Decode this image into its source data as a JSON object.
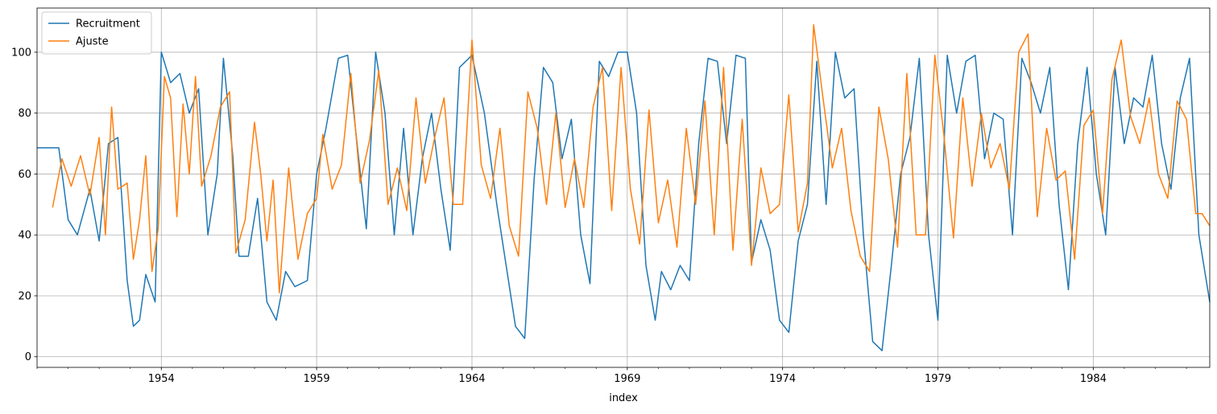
{
  "chart_data": {
    "type": "line",
    "title": "",
    "xlabel": "index",
    "ylabel": "",
    "x_ticks": [
      "1954",
      "1959",
      "1964",
      "1969",
      "1974",
      "1979",
      "1984"
    ],
    "y_ticks": [
      "0",
      "20",
      "40",
      "60",
      "80",
      "100"
    ],
    "xlim": [
      1950.0,
      1987.75
    ],
    "ylim": [
      -3.5,
      114.5
    ],
    "grid": true,
    "legend_position": "upper-left",
    "series": [
      {
        "name": "Recruitment",
        "color": "#1f77b4",
        "points": [
          [
            1950.0,
            68.6
          ],
          [
            1950.7,
            68.6
          ],
          [
            1951.0,
            45
          ],
          [
            1951.3,
            40
          ],
          [
            1951.7,
            55
          ],
          [
            1952.0,
            38
          ],
          [
            1952.3,
            70
          ],
          [
            1952.6,
            72
          ],
          [
            1952.9,
            25
          ],
          [
            1953.1,
            10
          ],
          [
            1953.3,
            12
          ],
          [
            1953.5,
            27
          ],
          [
            1953.8,
            18
          ],
          [
            1954.0,
            100
          ],
          [
            1954.3,
            90
          ],
          [
            1954.6,
            93
          ],
          [
            1954.9,
            80
          ],
          [
            1955.2,
            88
          ],
          [
            1955.5,
            40
          ],
          [
            1955.8,
            60
          ],
          [
            1956.0,
            98
          ],
          [
            1956.3,
            66
          ],
          [
            1956.5,
            33
          ],
          [
            1956.8,
            33
          ],
          [
            1957.1,
            52
          ],
          [
            1957.4,
            18
          ],
          [
            1957.7,
            12
          ],
          [
            1958.0,
            28
          ],
          [
            1958.3,
            23
          ],
          [
            1958.7,
            25
          ],
          [
            1959.0,
            60
          ],
          [
            1959.3,
            75
          ],
          [
            1959.7,
            98
          ],
          [
            1960.0,
            99
          ],
          [
            1960.3,
            70
          ],
          [
            1960.6,
            42
          ],
          [
            1960.9,
            100
          ],
          [
            1961.2,
            80
          ],
          [
            1961.5,
            40
          ],
          [
            1961.8,
            75
          ],
          [
            1962.1,
            40
          ],
          [
            1962.4,
            65
          ],
          [
            1962.7,
            80
          ],
          [
            1963.0,
            55
          ],
          [
            1963.3,
            35
          ],
          [
            1963.6,
            95
          ],
          [
            1964.0,
            99
          ],
          [
            1964.4,
            80
          ],
          [
            1964.8,
            50
          ],
          [
            1965.1,
            30
          ],
          [
            1965.4,
            10
          ],
          [
            1965.7,
            6
          ],
          [
            1966.0,
            58
          ],
          [
            1966.3,
            95
          ],
          [
            1966.6,
            90
          ],
          [
            1966.9,
            65
          ],
          [
            1967.2,
            78
          ],
          [
            1967.5,
            40
          ],
          [
            1967.8,
            24
          ],
          [
            1968.1,
            97
          ],
          [
            1968.4,
            92
          ],
          [
            1968.7,
            100
          ],
          [
            1969.0,
            100
          ],
          [
            1969.3,
            80
          ],
          [
            1969.6,
            30
          ],
          [
            1969.9,
            12
          ],
          [
            1970.1,
            28
          ],
          [
            1970.4,
            22
          ],
          [
            1970.7,
            30
          ],
          [
            1971.0,
            25
          ],
          [
            1971.3,
            70
          ],
          [
            1971.6,
            98
          ],
          [
            1971.9,
            97
          ],
          [
            1972.2,
            70
          ],
          [
            1972.5,
            99
          ],
          [
            1972.8,
            98
          ],
          [
            1973.0,
            31
          ],
          [
            1973.3,
            45
          ],
          [
            1973.6,
            35
          ],
          [
            1973.9,
            12
          ],
          [
            1974.2,
            8
          ],
          [
            1974.5,
            38
          ],
          [
            1974.8,
            50
          ],
          [
            1975.1,
            97
          ],
          [
            1975.4,
            50
          ],
          [
            1975.7,
            100
          ],
          [
            1976.0,
            85
          ],
          [
            1976.3,
            88
          ],
          [
            1976.6,
            40
          ],
          [
            1976.9,
            5
          ],
          [
            1977.2,
            2
          ],
          [
            1977.5,
            30
          ],
          [
            1977.8,
            60
          ],
          [
            1978.1,
            72
          ],
          [
            1978.4,
            98
          ],
          [
            1978.7,
            40
          ],
          [
            1979.0,
            12
          ],
          [
            1979.3,
            99
          ],
          [
            1979.6,
            80
          ],
          [
            1979.9,
            97
          ],
          [
            1980.2,
            99
          ],
          [
            1980.5,
            65
          ],
          [
            1980.8,
            80
          ],
          [
            1981.1,
            78
          ],
          [
            1981.4,
            40
          ],
          [
            1981.7,
            98
          ],
          [
            1982.0,
            90
          ],
          [
            1982.3,
            80
          ],
          [
            1982.6,
            95
          ],
          [
            1982.9,
            50
          ],
          [
            1983.2,
            22
          ],
          [
            1983.5,
            70
          ],
          [
            1983.8,
            95
          ],
          [
            1984.1,
            60
          ],
          [
            1984.4,
            40
          ],
          [
            1984.7,
            95
          ],
          [
            1985.0,
            70
          ],
          [
            1985.3,
            85
          ],
          [
            1985.6,
            82
          ],
          [
            1985.9,
            99
          ],
          [
            1986.2,
            70
          ],
          [
            1986.5,
            55
          ],
          [
            1986.8,
            85
          ],
          [
            1987.1,
            98
          ],
          [
            1987.4,
            40
          ],
          [
            1987.75,
            18
          ]
        ]
      },
      {
        "name": "Ajuste",
        "color": "#ff7f0e",
        "points": [
          [
            1950.5,
            49
          ],
          [
            1950.8,
            65
          ],
          [
            1951.1,
            56
          ],
          [
            1951.4,
            66
          ],
          [
            1951.7,
            53
          ],
          [
            1952.0,
            72
          ],
          [
            1952.2,
            40
          ],
          [
            1952.4,
            82
          ],
          [
            1952.6,
            55
          ],
          [
            1952.9,
            57
          ],
          [
            1953.1,
            32
          ],
          [
            1953.3,
            45
          ],
          [
            1953.5,
            66
          ],
          [
            1953.7,
            28
          ],
          [
            1953.9,
            42
          ],
          [
            1954.1,
            92
          ],
          [
            1954.3,
            85
          ],
          [
            1954.5,
            46
          ],
          [
            1954.7,
            83
          ],
          [
            1954.9,
            60
          ],
          [
            1955.1,
            92
          ],
          [
            1955.3,
            56
          ],
          [
            1955.6,
            66
          ],
          [
            1955.9,
            82
          ],
          [
            1956.2,
            87
          ],
          [
            1956.4,
            34
          ],
          [
            1956.7,
            45
          ],
          [
            1957.0,
            77
          ],
          [
            1957.2,
            60
          ],
          [
            1957.4,
            38
          ],
          [
            1957.6,
            58
          ],
          [
            1957.8,
            21
          ],
          [
            1958.1,
            62
          ],
          [
            1958.4,
            32
          ],
          [
            1958.7,
            47
          ],
          [
            1959.0,
            52
          ],
          [
            1959.2,
            73
          ],
          [
            1959.5,
            55
          ],
          [
            1959.8,
            63
          ],
          [
            1960.1,
            93
          ],
          [
            1960.4,
            57
          ],
          [
            1960.7,
            71
          ],
          [
            1961.0,
            94
          ],
          [
            1961.3,
            50
          ],
          [
            1961.6,
            62
          ],
          [
            1961.9,
            48
          ],
          [
            1962.2,
            85
          ],
          [
            1962.5,
            57
          ],
          [
            1962.8,
            72
          ],
          [
            1963.1,
            85
          ],
          [
            1963.4,
            50
          ],
          [
            1963.7,
            50
          ],
          [
            1964.0,
            104
          ],
          [
            1964.3,
            63
          ],
          [
            1964.6,
            52
          ],
          [
            1964.9,
            75
          ],
          [
            1965.2,
            43
          ],
          [
            1965.5,
            33
          ],
          [
            1965.8,
            87
          ],
          [
            1966.1,
            75
          ],
          [
            1966.4,
            50
          ],
          [
            1966.7,
            80
          ],
          [
            1967.0,
            49
          ],
          [
            1967.3,
            65
          ],
          [
            1967.6,
            49
          ],
          [
            1967.9,
            82
          ],
          [
            1968.2,
            95
          ],
          [
            1968.5,
            48
          ],
          [
            1968.8,
            95
          ],
          [
            1969.1,
            55
          ],
          [
            1969.4,
            37
          ],
          [
            1969.7,
            81
          ],
          [
            1970.0,
            44
          ],
          [
            1970.3,
            58
          ],
          [
            1970.6,
            36
          ],
          [
            1970.9,
            75
          ],
          [
            1971.2,
            50
          ],
          [
            1971.5,
            84
          ],
          [
            1971.8,
            40
          ],
          [
            1972.1,
            95
          ],
          [
            1972.4,
            35
          ],
          [
            1972.7,
            78
          ],
          [
            1973.0,
            30
          ],
          [
            1973.3,
            62
          ],
          [
            1973.6,
            47
          ],
          [
            1973.9,
            50
          ],
          [
            1974.2,
            86
          ],
          [
            1974.5,
            41
          ],
          [
            1974.8,
            57
          ],
          [
            1975.0,
            109
          ],
          [
            1975.3,
            85
          ],
          [
            1975.6,
            62
          ],
          [
            1975.9,
            75
          ],
          [
            1976.2,
            48
          ],
          [
            1976.5,
            33
          ],
          [
            1976.8,
            28
          ],
          [
            1977.1,
            82
          ],
          [
            1977.4,
            65
          ],
          [
            1977.7,
            36
          ],
          [
            1978.0,
            93
          ],
          [
            1978.3,
            40
          ],
          [
            1978.6,
            40
          ],
          [
            1978.9,
            99
          ],
          [
            1979.2,
            72
          ],
          [
            1979.5,
            39
          ],
          [
            1979.8,
            85
          ],
          [
            1980.1,
            56
          ],
          [
            1980.4,
            80
          ],
          [
            1980.7,
            62
          ],
          [
            1981.0,
            70
          ],
          [
            1981.3,
            55
          ],
          [
            1981.6,
            100
          ],
          [
            1981.9,
            106
          ],
          [
            1982.2,
            46
          ],
          [
            1982.5,
            75
          ],
          [
            1982.8,
            58
          ],
          [
            1983.1,
            61
          ],
          [
            1983.4,
            32
          ],
          [
            1983.7,
            76
          ],
          [
            1984.0,
            81
          ],
          [
            1984.3,
            47
          ],
          [
            1984.6,
            91
          ],
          [
            1984.9,
            104
          ],
          [
            1985.2,
            79
          ],
          [
            1985.5,
            70
          ],
          [
            1985.8,
            85
          ],
          [
            1986.1,
            60
          ],
          [
            1986.4,
            52
          ],
          [
            1986.7,
            84
          ],
          [
            1987.0,
            78
          ],
          [
            1987.3,
            47
          ],
          [
            1987.5,
            47
          ],
          [
            1987.75,
            43
          ]
        ]
      }
    ]
  }
}
